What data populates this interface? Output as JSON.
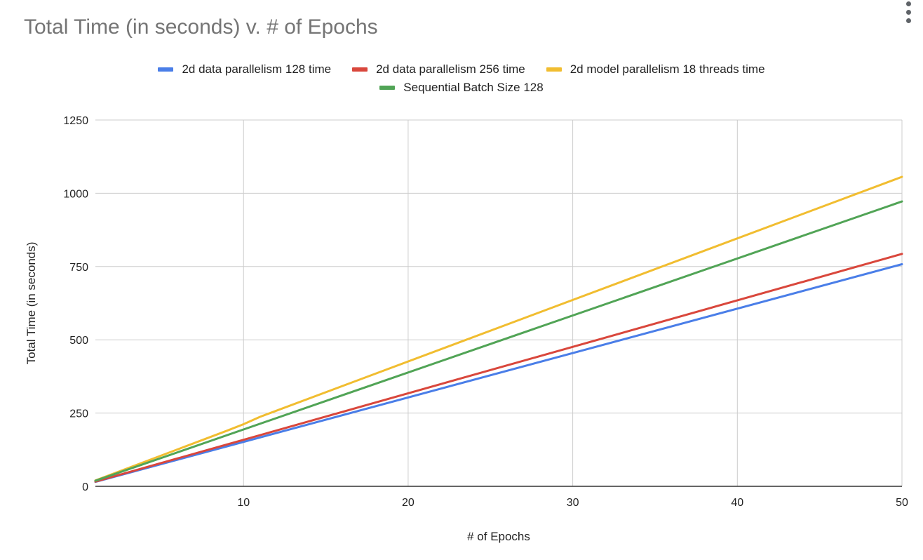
{
  "menu": {
    "icon": "more-vert-icon"
  },
  "chart_data": {
    "type": "line",
    "title": "Total Time (in seconds) v. # of Epochs",
    "xlabel": "# of Epochs",
    "ylabel": "Total Time (in seconds)",
    "xlim": [
      1,
      50
    ],
    "ylim": [
      0,
      1250
    ],
    "xticks": [
      10,
      20,
      30,
      40,
      50
    ],
    "yticks": [
      0,
      250,
      500,
      750,
      1000,
      1250
    ],
    "grid": true,
    "legend_position": "top",
    "series": [
      {
        "name": "2d data parallelism 128 time",
        "color": "#4a7ee8",
        "points": [
          [
            1,
            15
          ],
          [
            50,
            758
          ]
        ]
      },
      {
        "name": "2d data parallelism 256 time",
        "color": "#d9473c",
        "points": [
          [
            1,
            16
          ],
          [
            50,
            793
          ]
        ]
      },
      {
        "name": "2d model parallelism 18 threads time",
        "color": "#f1bd30",
        "points": [
          [
            1,
            20
          ],
          [
            9,
            190
          ],
          [
            10,
            212
          ],
          [
            11,
            237
          ],
          [
            50,
            1056
          ]
        ]
      },
      {
        "name": "Sequential Batch Size 128",
        "color": "#51a456",
        "points": [
          [
            1,
            19
          ],
          [
            50,
            972
          ]
        ]
      }
    ]
  }
}
